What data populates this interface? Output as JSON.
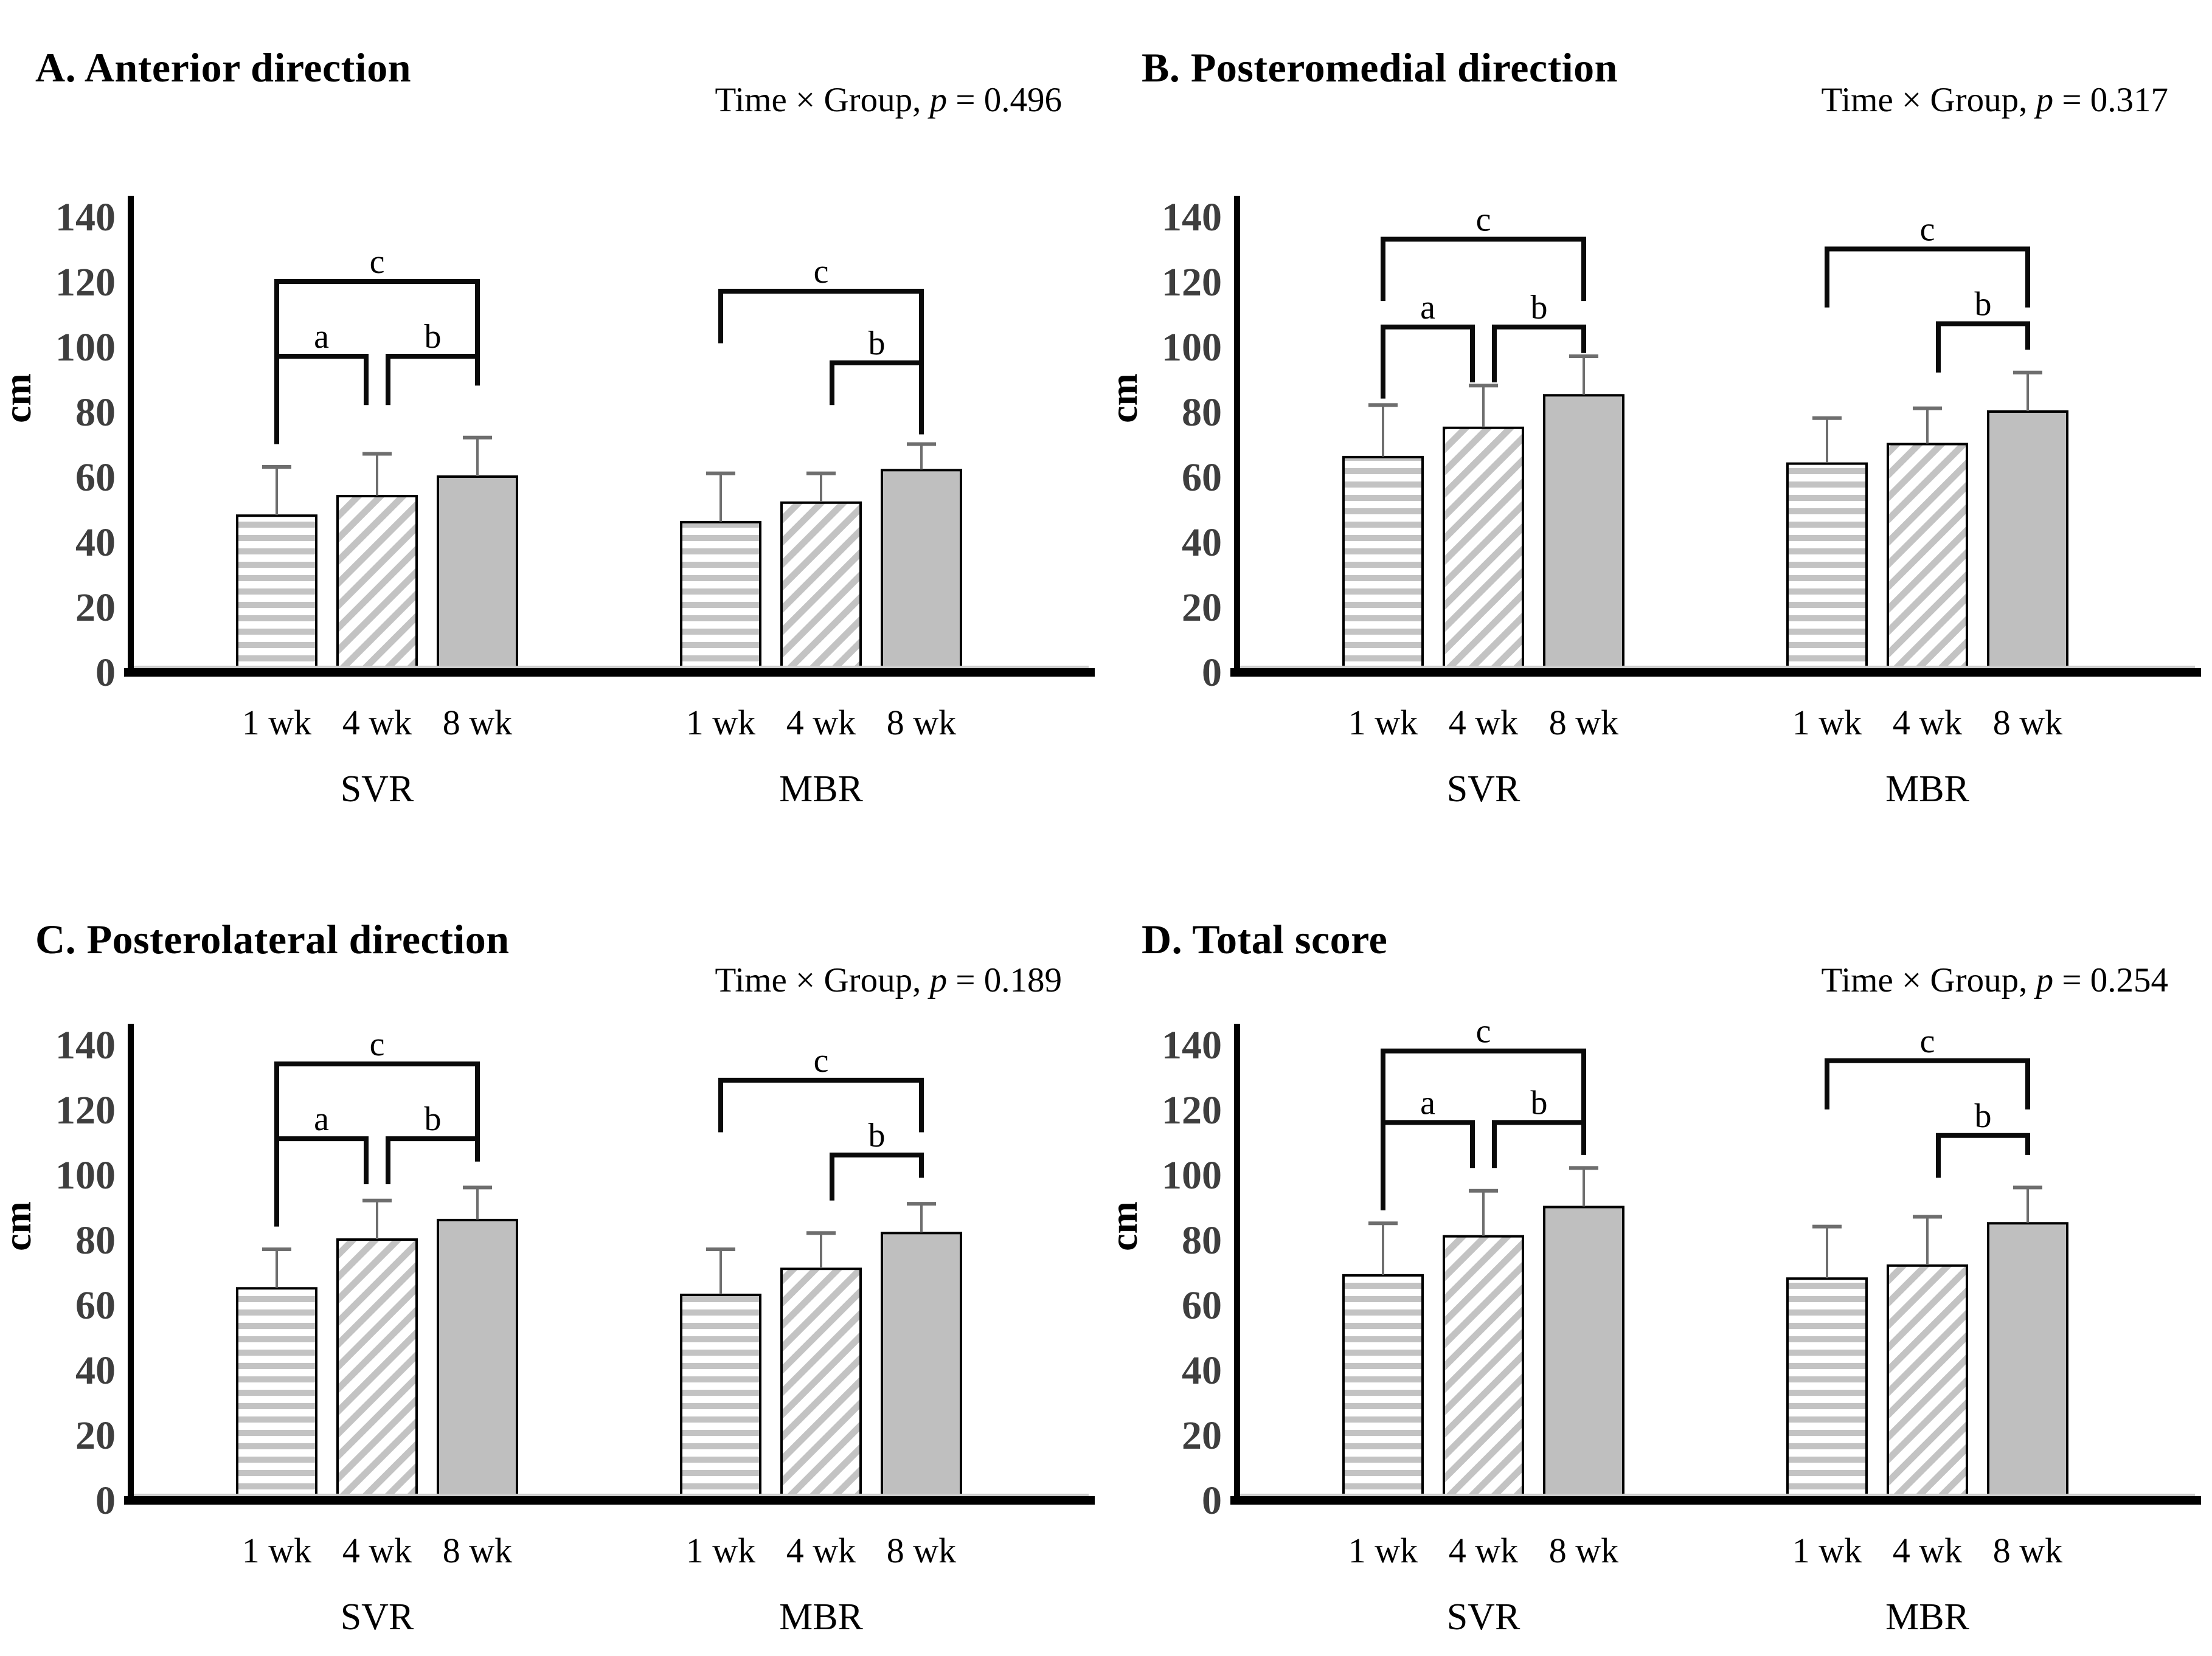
{
  "figure": {
    "y_axis_label": "cm",
    "y_ticks": [
      0,
      20,
      40,
      60,
      80,
      100,
      120,
      140
    ],
    "ylim": [
      0,
      148
    ],
    "time_points": [
      "1 wk",
      "4 wk",
      "8 wk"
    ],
    "group_names": [
      "SVR",
      "MBR"
    ],
    "bar_styles": [
      "horizontal-stripes",
      "diagonal-stripes",
      "solid-gray"
    ],
    "colors": {
      "background": "#ffffff",
      "bar_solid_gray": "#bfbfbf",
      "stripe_gray": "#c3c3c3",
      "bar_border": "#000000",
      "axis": "#000000",
      "floor_shadow": "#cccccc",
      "tick_text": "#3e3e3e",
      "error_bar": "#6e6e6e",
      "bracket": "#0a0a0a"
    }
  },
  "chart_data": [
    {
      "type": "bar",
      "panel": "A",
      "title": "A. Anterior direction",
      "stat_label": "Time × Group, ",
      "p_symbol": "p",
      "eq": " = ",
      "p_value": "0.496",
      "ylabel": "cm",
      "ylim": [
        0,
        148
      ],
      "categories": [
        "1 wk",
        "4 wk",
        "8 wk"
      ],
      "series": [
        {
          "name": "SVR",
          "values": [
            48,
            54,
            60
          ],
          "error_tops": [
            63,
            67,
            72
          ]
        },
        {
          "name": "MBR",
          "values": [
            46,
            52,
            62
          ],
          "error_tops": [
            61,
            61,
            70
          ]
        }
      ],
      "brackets": [
        {
          "group": 0,
          "label": "a",
          "from": 0,
          "to": 1,
          "top": 97,
          "left_end": 70,
          "right_end": 82,
          "x2off": -18
        },
        {
          "group": 0,
          "label": "b",
          "from": 1,
          "to": 2,
          "top": 97,
          "left_end": 82,
          "right_end": 88,
          "x1off": 18
        },
        {
          "group": 0,
          "label": "c",
          "from": 0,
          "to": 2,
          "top": 120,
          "left_end": 70,
          "right_end": 89
        },
        {
          "group": 1,
          "label": "b",
          "from": 1,
          "to": 2,
          "top": 95,
          "left_end": 82,
          "right_end": 73,
          "x1off": 18
        },
        {
          "group": 1,
          "label": "c",
          "from": 0,
          "to": 2,
          "top": 117,
          "left_end": 101,
          "right_end": 87
        }
      ]
    },
    {
      "type": "bar",
      "panel": "B",
      "title": "B. Posteromedial direction",
      "stat_label": "Time × Group, ",
      "p_symbol": "p",
      "eq": " = ",
      "p_value": "0.317",
      "ylabel": "cm",
      "ylim": [
        0,
        148
      ],
      "categories": [
        "1 wk",
        "4 wk",
        "8 wk"
      ],
      "series": [
        {
          "name": "SVR",
          "values": [
            66,
            75,
            85
          ],
          "error_tops": [
            82,
            88,
            97
          ]
        },
        {
          "name": "MBR",
          "values": [
            64,
            70,
            80
          ],
          "error_tops": [
            78,
            81,
            92
          ]
        }
      ],
      "brackets": [
        {
          "group": 0,
          "label": "a",
          "from": 0,
          "to": 1,
          "top": 106,
          "left_end": 84,
          "right_end": 89,
          "x2off": -18
        },
        {
          "group": 0,
          "label": "b",
          "from": 1,
          "to": 2,
          "top": 106,
          "left_end": 89,
          "right_end": 98,
          "x1off": 18
        },
        {
          "group": 0,
          "label": "c",
          "from": 0,
          "to": 2,
          "top": 133,
          "left_end": 114,
          "right_end": 114
        },
        {
          "group": 1,
          "label": "b",
          "from": 1,
          "to": 2,
          "top": 107,
          "left_end": 92,
          "right_end": 99,
          "x1off": 18
        },
        {
          "group": 1,
          "label": "c",
          "from": 0,
          "to": 2,
          "top": 130,
          "left_end": 112,
          "right_end": 112
        }
      ]
    },
    {
      "type": "bar",
      "panel": "C",
      "title": "C. Posterolateral direction",
      "stat_label": "Time × Group, ",
      "p_symbol": "p",
      "eq": " = ",
      "p_value": "0.189",
      "ylabel": "cm",
      "ylim": [
        0,
        148
      ],
      "categories": [
        "1 wk",
        "4 wk",
        "8 wk"
      ],
      "series": [
        {
          "name": "SVR",
          "values": [
            65,
            80,
            86
          ],
          "error_tops": [
            77,
            92,
            96
          ]
        },
        {
          "name": "MBR",
          "values": [
            63,
            71,
            82
          ],
          "error_tops": [
            77,
            82,
            91
          ]
        }
      ],
      "brackets": [
        {
          "group": 0,
          "label": "a",
          "from": 0,
          "to": 1,
          "top": 111,
          "left_end": 90,
          "right_end": 97,
          "x2off": -18
        },
        {
          "group": 0,
          "label": "b",
          "from": 1,
          "to": 2,
          "top": 111,
          "left_end": 97,
          "right_end": 104,
          "x1off": 18
        },
        {
          "group": 0,
          "label": "c",
          "from": 0,
          "to": 2,
          "top": 134,
          "left_end": 84,
          "right_end": 104
        },
        {
          "group": 1,
          "label": "b",
          "from": 1,
          "to": 2,
          "top": 106,
          "left_end": 92,
          "right_end": 99,
          "x1off": 18
        },
        {
          "group": 1,
          "label": "c",
          "from": 0,
          "to": 2,
          "top": 129,
          "left_end": 113,
          "right_end": 113
        }
      ]
    },
    {
      "type": "bar",
      "panel": "D",
      "title": "D. Total score",
      "stat_label": "Time × Group, ",
      "p_symbol": "p",
      "eq": " = ",
      "p_value": "0.254",
      "ylabel": "cm",
      "ylim": [
        0,
        148
      ],
      "categories": [
        "1 wk",
        "4 wk",
        "8 wk"
      ],
      "series": [
        {
          "name": "SVR",
          "values": [
            69,
            81,
            90
          ],
          "error_tops": [
            85,
            95,
            102
          ]
        },
        {
          "name": "MBR",
          "values": [
            68,
            72,
            85
          ],
          "error_tops": [
            84,
            87,
            96
          ]
        }
      ],
      "brackets": [
        {
          "group": 0,
          "label": "a",
          "from": 0,
          "to": 1,
          "top": 116,
          "left_end": 101,
          "right_end": 102,
          "x2off": -18
        },
        {
          "group": 0,
          "label": "b",
          "from": 1,
          "to": 2,
          "top": 116,
          "left_end": 102,
          "right_end": 107,
          "x1off": 18
        },
        {
          "group": 0,
          "label": "c",
          "from": 0,
          "to": 2,
          "top": 138,
          "left_end": 89,
          "right_end": 106
        },
        {
          "group": 1,
          "label": "b",
          "from": 1,
          "to": 2,
          "top": 112,
          "left_end": 99,
          "right_end": 106,
          "x1off": 18
        },
        {
          "group": 1,
          "label": "c",
          "from": 0,
          "to": 2,
          "top": 135,
          "left_end": 120,
          "right_end": 120
        }
      ]
    }
  ]
}
